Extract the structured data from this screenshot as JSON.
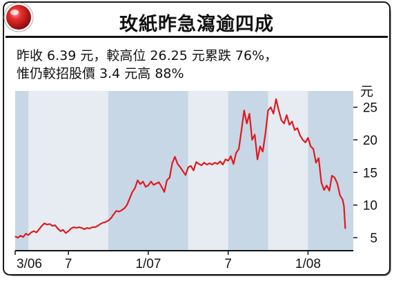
{
  "title": "玫紙昨急瀉逾四成",
  "subtitle_lines": [
    "昨收 6.39 元，較高位 26.25 元累跌 76%，",
    "惟仍較招股價 3.4 元高 88%"
  ],
  "colors": {
    "band_shaded": "#c7d7e5",
    "band_light": "#e6ecf2",
    "line": "#e0191e",
    "badge": "#d8171c"
  },
  "chart_data": {
    "type": "line",
    "title": "玫紙昨急瀉逾四成",
    "ylabel": "元",
    "y_side": "right",
    "ylim": [
      3,
      27.5
    ],
    "yticks": [
      5,
      10,
      15,
      20,
      25
    ],
    "xlim": [
      0,
      25.4
    ],
    "x_ticks": [
      {
        "x": 0,
        "label": "3/06"
      },
      {
        "x": 4,
        "label": "7"
      },
      {
        "x": 10,
        "label": "1/07"
      },
      {
        "x": 16,
        "label": "7"
      },
      {
        "x": 22,
        "label": "1/08"
      }
    ],
    "bands": [
      {
        "from": 0,
        "to": 1,
        "shade": "dark"
      },
      {
        "from": 1,
        "to": 7,
        "shade": "light"
      },
      {
        "from": 7,
        "to": 13,
        "shade": "dark"
      },
      {
        "from": 13,
        "to": 16,
        "shade": "light"
      },
      {
        "from": 16,
        "to": 19,
        "shade": "dark"
      },
      {
        "from": 19,
        "to": 22,
        "shade": "light"
      },
      {
        "from": 22,
        "to": 25.4,
        "shade": "dark"
      }
    ],
    "grid": false,
    "series": [
      {
        "points": [
          [
            0.0,
            5.2
          ],
          [
            0.2,
            5.0
          ],
          [
            0.4,
            5.3
          ],
          [
            0.6,
            5.1
          ],
          [
            0.8,
            5.6
          ],
          [
            1.0,
            5.4
          ],
          [
            1.2,
            5.8
          ],
          [
            1.4,
            6.0
          ],
          [
            1.6,
            5.8
          ],
          [
            1.8,
            6.3
          ],
          [
            2.0,
            6.8
          ],
          [
            2.2,
            7.2
          ],
          [
            2.4,
            7.0
          ],
          [
            2.6,
            7.1
          ],
          [
            2.8,
            6.8
          ],
          [
            3.0,
            6.9
          ],
          [
            3.2,
            6.4
          ],
          [
            3.4,
            6.0
          ],
          [
            3.6,
            6.2
          ],
          [
            3.8,
            5.7
          ],
          [
            4.0,
            6.0
          ],
          [
            4.2,
            6.4
          ],
          [
            4.4,
            6.6
          ],
          [
            4.6,
            6.5
          ],
          [
            4.8,
            6.6
          ],
          [
            5.0,
            6.5
          ],
          [
            5.2,
            6.3
          ],
          [
            5.4,
            6.5
          ],
          [
            5.6,
            6.4
          ],
          [
            5.8,
            6.6
          ],
          [
            6.0,
            6.6
          ],
          [
            6.2,
            6.8
          ],
          [
            6.4,
            7.1
          ],
          [
            6.6,
            7.3
          ],
          [
            6.8,
            7.4
          ],
          [
            7.0,
            7.6
          ],
          [
            7.2,
            8.0
          ],
          [
            7.4,
            8.6
          ],
          [
            7.6,
            9.1
          ],
          [
            7.8,
            9.0
          ],
          [
            8.0,
            9.2
          ],
          [
            8.2,
            9.5
          ],
          [
            8.4,
            10.0
          ],
          [
            8.6,
            11.0
          ],
          [
            8.8,
            12.0
          ],
          [
            9.0,
            12.6
          ],
          [
            9.2,
            13.8
          ],
          [
            9.4,
            13.2
          ],
          [
            9.6,
            13.6
          ],
          [
            9.8,
            12.8
          ],
          [
            10.0,
            13.0
          ],
          [
            10.2,
            13.6
          ],
          [
            10.4,
            13.1
          ],
          [
            10.6,
            13.3
          ],
          [
            10.8,
            13.5
          ],
          [
            11.0,
            12.8
          ],
          [
            11.2,
            12.0
          ],
          [
            11.4,
            13.8
          ],
          [
            11.6,
            14.2
          ],
          [
            11.8,
            16.4
          ],
          [
            12.0,
            17.4
          ],
          [
            12.2,
            16.3
          ],
          [
            12.4,
            15.8
          ],
          [
            12.6,
            15.2
          ],
          [
            12.8,
            14.6
          ],
          [
            13.0,
            15.8
          ],
          [
            13.2,
            16.0
          ],
          [
            13.4,
            15.3
          ],
          [
            13.6,
            16.6
          ],
          [
            13.8,
            16.3
          ],
          [
            14.0,
            16.1
          ],
          [
            14.2,
            16.5
          ],
          [
            14.4,
            16.2
          ],
          [
            14.6,
            16.4
          ],
          [
            14.8,
            16.2
          ],
          [
            15.0,
            16.5
          ],
          [
            15.2,
            16.3
          ],
          [
            15.4,
            16.7
          ],
          [
            15.6,
            16.2
          ],
          [
            15.8,
            17.0
          ],
          [
            16.0,
            16.8
          ],
          [
            16.2,
            17.5
          ],
          [
            16.4,
            16.3
          ],
          [
            16.6,
            18.0
          ],
          [
            16.8,
            18.6
          ],
          [
            17.0,
            21.5
          ],
          [
            17.2,
            24.5
          ],
          [
            17.4,
            22.5
          ],
          [
            17.6,
            24.0
          ],
          [
            17.8,
            20.0
          ],
          [
            18.0,
            20.8
          ],
          [
            18.2,
            17.0
          ],
          [
            18.4,
            19.0
          ],
          [
            18.6,
            18.2
          ],
          [
            18.8,
            21.0
          ],
          [
            19.0,
            24.5
          ],
          [
            19.2,
            25.0
          ],
          [
            19.4,
            24.0
          ],
          [
            19.6,
            26.25
          ],
          [
            19.8,
            24.5
          ],
          [
            20.0,
            23.0
          ],
          [
            20.2,
            22.5
          ],
          [
            20.4,
            23.8
          ],
          [
            20.6,
            22.3
          ],
          [
            20.8,
            22.8
          ],
          [
            21.0,
            21.5
          ],
          [
            21.2,
            21.8
          ],
          [
            21.4,
            20.7
          ],
          [
            21.6,
            20.0
          ],
          [
            21.8,
            19.6
          ],
          [
            22.0,
            20.3
          ],
          [
            22.2,
            19.0
          ],
          [
            22.4,
            18.6
          ],
          [
            22.6,
            16.5
          ],
          [
            22.8,
            17.2
          ],
          [
            23.0,
            13.5
          ],
          [
            23.2,
            12.3
          ],
          [
            23.4,
            13.0
          ],
          [
            23.6,
            12.2
          ],
          [
            23.8,
            14.5
          ],
          [
            24.0,
            14.2
          ],
          [
            24.2,
            13.3
          ],
          [
            24.4,
            11.5
          ],
          [
            24.6,
            10.8
          ],
          [
            24.7,
            9.8
          ],
          [
            24.8,
            6.39
          ]
        ]
      }
    ]
  }
}
